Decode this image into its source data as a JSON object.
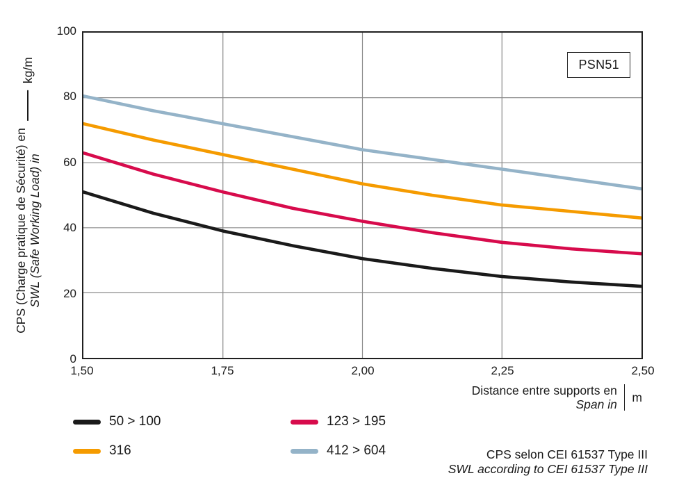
{
  "chart": {
    "badge": "PSN51",
    "y_axis": {
      "title_line1": "CPS (Charge pratique de Sécurité) en",
      "title_line2": "SWL (Safe Working Load) in",
      "unit": "kg/m"
    },
    "x_axis": {
      "title_line1": "Distance entre supports en",
      "title_line2": "Span in",
      "unit": "m"
    },
    "footer_line1": "CPS selon CEI 61537 Type III",
    "footer_line2": "SWL according to CEI 61537 Type III"
  },
  "chart_data": {
    "type": "line",
    "title": "PSN51 safe working load vs span",
    "xlabel": "Distance entre supports en / Span in (m)",
    "ylabel": "CPS (Charge pratique de Sécurité) / SWL (Safe Working Load) (kg/m)",
    "xlim": [
      1.5,
      2.5
    ],
    "ylim": [
      0,
      100
    ],
    "grid": true,
    "legend_position": "bottom-left",
    "x_ticks": [
      1.5,
      1.75,
      2.0,
      2.25,
      2.5
    ],
    "x_tick_labels": [
      "1,50",
      "1,75",
      "2,00",
      "2,25",
      "2,50"
    ],
    "y_ticks": [
      0,
      20,
      40,
      60,
      80,
      100
    ],
    "x": [
      1.5,
      1.625,
      1.75,
      1.875,
      2.0,
      2.125,
      2.25,
      2.375,
      2.5
    ],
    "series": [
      {
        "name": "50 > 100",
        "color": "#1a1a1a",
        "values": [
          51,
          44.5,
          39,
          34.5,
          30.5,
          27.5,
          25,
          23.3,
          22
        ]
      },
      {
        "name": "123 > 195",
        "color": "#d70b4c",
        "values": [
          63,
          56.5,
          51,
          46,
          42,
          38.5,
          35.5,
          33.5,
          32
        ]
      },
      {
        "name": "316",
        "color": "#f59b00",
        "values": [
          72,
          67,
          62.5,
          58,
          53.5,
          50,
          47,
          45,
          43
        ]
      },
      {
        "name": "412 > 604",
        "color": "#94b3c8",
        "values": [
          80.5,
          76,
          72,
          68,
          64,
          61,
          58,
          55,
          52
        ]
      }
    ]
  }
}
